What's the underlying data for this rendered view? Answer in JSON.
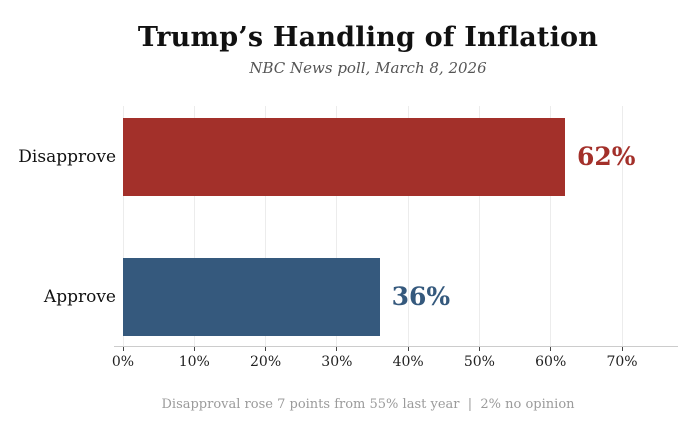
{
  "chart_data": {
    "type": "bar",
    "orientation": "horizontal",
    "title": "Trump’s Handling of Inflation",
    "subtitle": "NBC News poll, March 8, 2026",
    "footnote": "Disapproval rose 7 points from 55% last year  |  2% no opinion",
    "categories": [
      "Disapprove",
      "Approve"
    ],
    "values": [
      62,
      36
    ],
    "value_labels": [
      "62%",
      "36%"
    ],
    "bar_colors": [
      "#a3302a",
      "#35597d"
    ],
    "value_label_colors": [
      "#a3302a",
      "#35597d"
    ],
    "xlabel": "",
    "ylabel": "",
    "xlim": [
      0,
      70
    ],
    "xticks": [
      0,
      10,
      20,
      30,
      40,
      50,
      60,
      70
    ],
    "xtick_labels": [
      "0%",
      "10%",
      "20%",
      "30%",
      "40%",
      "50%",
      "60%",
      "70%"
    ],
    "grid": "vertical",
    "legend": "none"
  },
  "colors": {
    "background": "#ffffff",
    "accent_red": "#a3302a",
    "accent_blue": "#35597d"
  }
}
